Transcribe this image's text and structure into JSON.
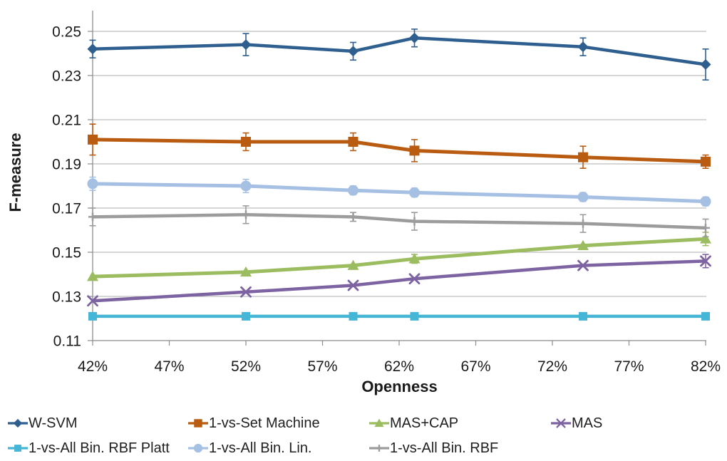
{
  "chart_data": {
    "type": "line",
    "title": "",
    "xlabel": "Openness",
    "ylabel": "F-measure",
    "x": [
      42,
      52,
      59,
      63,
      74,
      82
    ],
    "x_suffix": "%",
    "xticks": [
      42,
      47,
      52,
      57,
      62,
      67,
      72,
      77,
      82
    ],
    "yticks": [
      0.11,
      0.13,
      0.15,
      0.17,
      0.19,
      0.21,
      0.23,
      0.25
    ],
    "xlim": [
      42,
      82
    ],
    "ylim": [
      0.11,
      0.26
    ],
    "grid": "horizontal",
    "error_bars": true,
    "legend_position": "bottom",
    "legend_rows": [
      [
        0,
        1,
        2,
        3
      ],
      [
        4,
        5,
        6
      ]
    ],
    "series": [
      {
        "name": "W-SVM",
        "color": "#2E5F8F",
        "marker": "diamond",
        "values": [
          0.242,
          0.244,
          0.241,
          0.247,
          0.243,
          0.235
        ],
        "errors": [
          0.004,
          0.005,
          0.004,
          0.004,
          0.004,
          0.007
        ]
      },
      {
        "name": "1-vs-Set Machine",
        "color": "#B95C11",
        "marker": "square",
        "values": [
          0.201,
          0.2,
          0.2,
          0.196,
          0.193,
          0.191
        ],
        "errors": [
          0.007,
          0.004,
          0.004,
          0.005,
          0.005,
          0.003
        ]
      },
      {
        "name": "MAS+CAP",
        "color": "#9CBC60",
        "marker": "triangle",
        "values": [
          0.139,
          0.141,
          0.144,
          0.147,
          0.153,
          0.156
        ],
        "errors": [
          0.001,
          0.001,
          0.001,
          0.002,
          0.001,
          0.003
        ]
      },
      {
        "name": "MAS",
        "color": "#7E63A3",
        "marker": "x",
        "values": [
          0.128,
          0.132,
          0.135,
          0.138,
          0.144,
          0.146
        ],
        "errors": [
          0.001,
          0.001,
          0.001,
          0.001,
          0.001,
          0.003
        ]
      },
      {
        "name": "1-vs-All Bin. RBF Platt",
        "color": "#45B6D6",
        "marker": "square",
        "values": [
          0.121,
          0.121,
          0.121,
          0.121,
          0.121,
          0.121
        ],
        "errors": [
          0,
          0,
          0,
          0,
          0,
          0
        ]
      },
      {
        "name": "1-vs-All Bin. Lin.",
        "color": "#A6C0E4",
        "marker": "circle",
        "values": [
          0.181,
          0.18,
          0.178,
          0.177,
          0.175,
          0.173
        ],
        "errors": [
          0.003,
          0.003,
          0.002,
          0.002,
          0.002,
          0.002
        ]
      },
      {
        "name": "1-vs-All Bin. RBF",
        "color": "#9C9C9C",
        "marker": "plus",
        "values": [
          0.166,
          0.167,
          0.166,
          0.164,
          0.163,
          0.161
        ],
        "errors": [
          0.004,
          0.004,
          0.002,
          0.004,
          0.004,
          0.004
        ]
      }
    ]
  }
}
